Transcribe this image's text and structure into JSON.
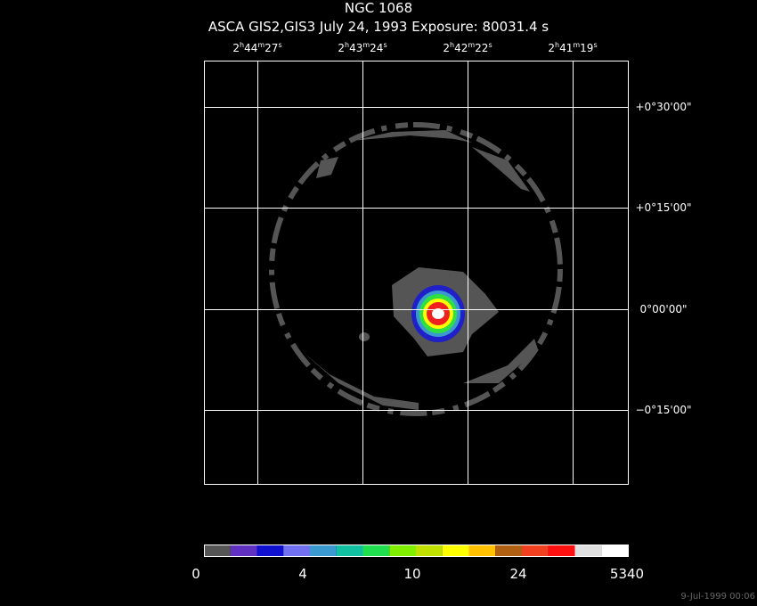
{
  "header": {
    "title": "NGC 1068",
    "subtitle": "ASCA GIS2,GIS3 July 24, 1993 Exposure: 80031.4 s"
  },
  "ra_labels": [
    [
      "2",
      "h",
      "44",
      "m",
      "27",
      "s"
    ],
    [
      "2",
      "h",
      "43",
      "m",
      "24",
      "s"
    ],
    [
      "2",
      "h",
      "42",
      "m",
      "22",
      "s"
    ],
    [
      "2",
      "h",
      "41",
      "m",
      "19",
      "s"
    ]
  ],
  "dec_labels": [
    "+0°30'00\"",
    "+0°15'00\"",
    "0°00'00\"",
    "−0°15'00\""
  ],
  "colorbar_labels": [
    "0",
    "4",
    "10",
    "24",
    "5340"
  ],
  "timestamp": "9-Jul-1999 00:06"
}
